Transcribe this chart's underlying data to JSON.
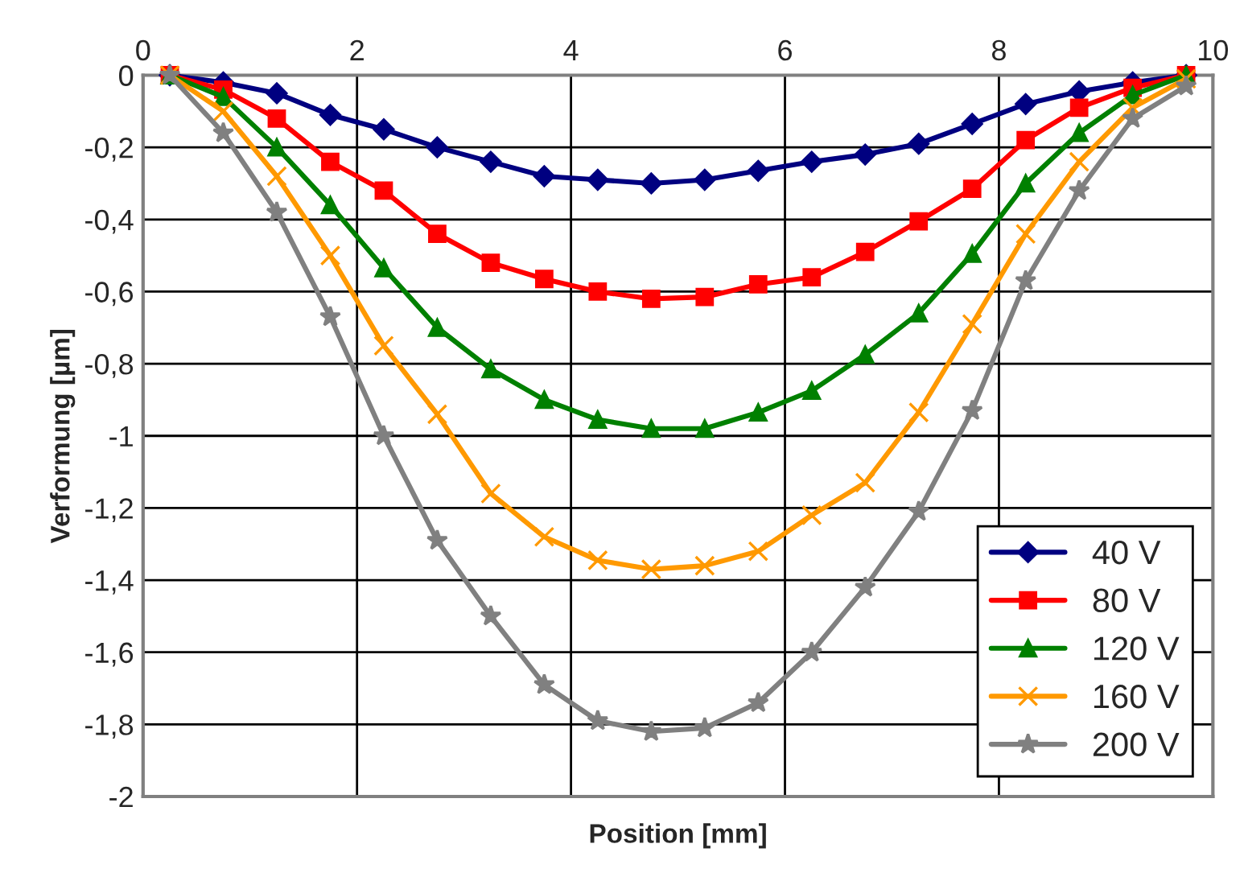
{
  "chart_data": {
    "type": "line",
    "xlabel": "Position [mm]",
    "ylabel": "Verformung [µm]",
    "x": [
      0.25,
      0.75,
      1.25,
      1.75,
      2.25,
      2.75,
      3.25,
      3.75,
      4.25,
      4.75,
      5.25,
      5.75,
      6.25,
      6.75,
      7.25,
      7.75,
      8.25,
      8.75,
      9.25,
      9.75
    ],
    "series": [
      {
        "name": "40 V",
        "color": "#000080",
        "marker": "diamond",
        "values": [
          0,
          -0.02,
          -0.05,
          -0.11,
          -0.15,
          -0.2,
          -0.24,
          -0.28,
          -0.29,
          -0.3,
          -0.29,
          -0.265,
          -0.24,
          -0.22,
          -0.19,
          -0.135,
          -0.08,
          -0.045,
          -0.02,
          0
        ]
      },
      {
        "name": "80 V",
        "color": "#ff0000",
        "marker": "square",
        "values": [
          0,
          -0.04,
          -0.12,
          -0.24,
          -0.32,
          -0.44,
          -0.52,
          -0.565,
          -0.6,
          -0.62,
          -0.615,
          -0.58,
          -0.56,
          -0.49,
          -0.405,
          -0.315,
          -0.18,
          -0.09,
          -0.035,
          0
        ]
      },
      {
        "name": "120 V",
        "color": "#008000",
        "marker": "triangle",
        "values": [
          0,
          -0.06,
          -0.2,
          -0.36,
          -0.535,
          -0.7,
          -0.815,
          -0.9,
          -0.955,
          -0.98,
          -0.98,
          -0.935,
          -0.875,
          -0.775,
          -0.66,
          -0.495,
          -0.3,
          -0.16,
          -0.055,
          0
        ]
      },
      {
        "name": "160 V",
        "color": "#ff9900",
        "marker": "cross",
        "values": [
          0,
          -0.1,
          -0.28,
          -0.5,
          -0.75,
          -0.94,
          -1.16,
          -1.28,
          -1.345,
          -1.37,
          -1.36,
          -1.32,
          -1.22,
          -1.13,
          -0.935,
          -0.69,
          -0.44,
          -0.24,
          -0.09,
          -0.01
        ]
      },
      {
        "name": "200 V",
        "color": "#808080",
        "marker": "star",
        "values": [
          0,
          -0.16,
          -0.38,
          -0.67,
          -1.0,
          -1.29,
          -1.5,
          -1.69,
          -1.79,
          -1.82,
          -1.81,
          -1.74,
          -1.6,
          -1.42,
          -1.21,
          -0.93,
          -0.57,
          -0.32,
          -0.12,
          -0.03
        ]
      }
    ],
    "xlim": [
      0,
      10
    ],
    "xticks": [
      0,
      2,
      4,
      6,
      8,
      10
    ],
    "ylim": [
      -2,
      0
    ],
    "yticks": [
      0,
      {
        "value": -0.2,
        "label": "-0,2"
      },
      {
        "value": -0.4,
        "label": "-0,4"
      },
      {
        "value": -0.6,
        "label": "-0,6"
      },
      {
        "value": -0.8,
        "label": "-0,8"
      },
      -1,
      {
        "value": -1.2,
        "label": "-1,2"
      },
      {
        "value": -1.4,
        "label": "-1,4"
      },
      {
        "value": -1.6,
        "label": "-1,6"
      },
      {
        "value": -1.8,
        "label": "-1,8"
      },
      -2
    ],
    "grid": true,
    "legend": "bottom right"
  }
}
